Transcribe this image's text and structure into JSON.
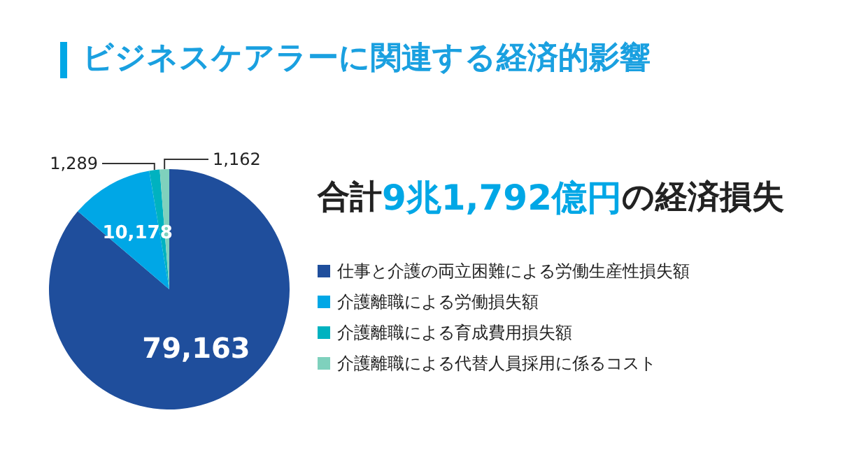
{
  "chart_data": {
    "type": "pie",
    "title": "ビジネスケアラーに関連する経済的影響",
    "subtitle": "合計9兆1,792億円の経済損失",
    "categories": [
      "仕事と介護の両立困難による労働生産性損失額",
      "介護離職による労働損失額",
      "介護離職による育成費用損失額",
      "介護離職による代替人員採用に係るコスト"
    ],
    "values": [
      79163,
      10178,
      1289,
      1162
    ],
    "value_labels": [
      "79,163",
      "10,178",
      "1,289",
      "1,162"
    ],
    "colors": [
      "#1f4e9c",
      "#00a7e6",
      "#00b2c0",
      "#7fd1bd"
    ],
    "legend": "right"
  }
}
